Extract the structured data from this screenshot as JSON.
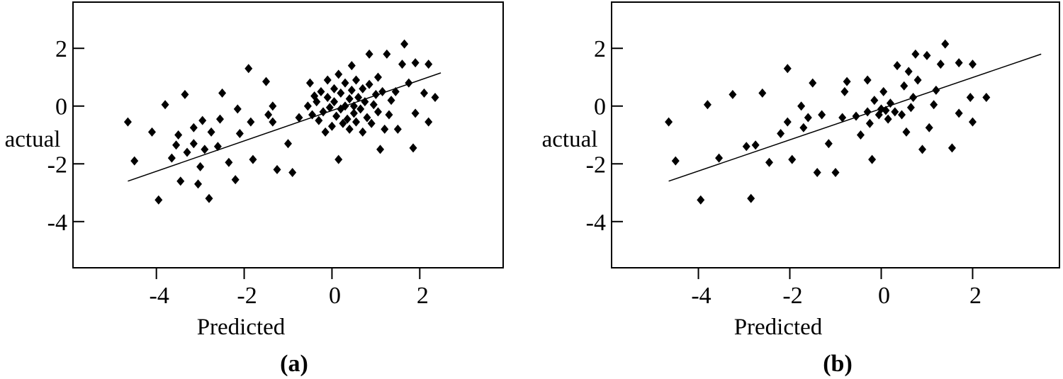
{
  "chart_data": [
    {
      "type": "scatter",
      "panel_label": "(a)",
      "title": "",
      "xlabel": "Predicted",
      "ylabel": "actual",
      "xlim": [
        -5.9,
        3.9
      ],
      "ylim": [
        -5.6,
        3.6
      ],
      "xticks": [
        -4,
        -2,
        0,
        2
      ],
      "yticks": [
        2,
        0,
        -2,
        -4
      ],
      "grid": false,
      "legend": "none",
      "fit_line": {
        "x": [
          -4.65,
          2.48
        ],
        "y": [
          -2.6,
          1.15
        ]
      },
      "points": [
        [
          -4.65,
          -0.55
        ],
        [
          -4.5,
          -1.9
        ],
        [
          -4.1,
          -0.9
        ],
        [
          -3.95,
          -3.25
        ],
        [
          -3.8,
          0.05
        ],
        [
          -3.65,
          -1.8
        ],
        [
          -3.55,
          -1.35
        ],
        [
          -3.5,
          -1.0
        ],
        [
          -3.45,
          -2.6
        ],
        [
          -3.35,
          0.4
        ],
        [
          -3.3,
          -1.6
        ],
        [
          -3.15,
          -1.3
        ],
        [
          -3.15,
          -0.75
        ],
        [
          -3.05,
          -2.7
        ],
        [
          -3.0,
          -2.1
        ],
        [
          -2.95,
          -0.5
        ],
        [
          -2.9,
          -1.5
        ],
        [
          -2.8,
          -3.2
        ],
        [
          -2.75,
          -0.9
        ],
        [
          -2.6,
          -1.4
        ],
        [
          -2.55,
          -0.45
        ],
        [
          -2.5,
          0.45
        ],
        [
          -2.35,
          -1.95
        ],
        [
          -2.2,
          -2.55
        ],
        [
          -2.15,
          -0.1
        ],
        [
          -2.1,
          -0.95
        ],
        [
          -1.9,
          1.3
        ],
        [
          -1.85,
          -0.55
        ],
        [
          -1.8,
          -1.85
        ],
        [
          -1.5,
          0.85
        ],
        [
          -1.45,
          -0.3
        ],
        [
          -1.35,
          -0.55
        ],
        [
          -1.35,
          0.0
        ],
        [
          -1.25,
          -2.2
        ],
        [
          -1.0,
          -1.3
        ],
        [
          -0.9,
          -2.3
        ],
        [
          -0.75,
          -0.4
        ],
        [
          -0.55,
          0.0
        ],
        [
          -0.5,
          0.8
        ],
        [
          -0.45,
          -0.3
        ],
        [
          -0.4,
          0.35
        ],
        [
          -0.35,
          0.15
        ],
        [
          -0.3,
          -0.5
        ],
        [
          -0.25,
          0.5
        ],
        [
          -0.2,
          -0.2
        ],
        [
          -0.15,
          -0.9
        ],
        [
          -0.1,
          0.3
        ],
        [
          -0.1,
          0.9
        ],
        [
          -0.05,
          -0.05
        ],
        [
          0.0,
          -0.7
        ],
        [
          0.05,
          0.6
        ],
        [
          0.05,
          0.15
        ],
        [
          0.1,
          -0.35
        ],
        [
          0.15,
          1.1
        ],
        [
          0.15,
          -1.85
        ],
        [
          0.2,
          0.45
        ],
        [
          0.2,
          -0.1
        ],
        [
          0.25,
          -0.6
        ],
        [
          0.3,
          0.0
        ],
        [
          0.3,
          0.8
        ],
        [
          0.35,
          -0.45
        ],
        [
          0.4,
          0.25
        ],
        [
          0.4,
          -0.8
        ],
        [
          0.45,
          1.4
        ],
        [
          0.45,
          0.55
        ],
        [
          0.5,
          -0.25
        ],
        [
          0.5,
          0.0
        ],
        [
          0.55,
          0.9
        ],
        [
          0.55,
          -0.55
        ],
        [
          0.6,
          0.3
        ],
        [
          0.65,
          -0.1
        ],
        [
          0.7,
          -0.9
        ],
        [
          0.7,
          0.6
        ],
        [
          0.75,
          0.15
        ],
        [
          0.8,
          -0.4
        ],
        [
          0.85,
          1.8
        ],
        [
          0.85,
          0.75
        ],
        [
          0.9,
          -0.6
        ],
        [
          0.95,
          0.05
        ],
        [
          1.0,
          0.4
        ],
        [
          1.05,
          -0.2
        ],
        [
          1.05,
          1.0
        ],
        [
          1.1,
          -1.5
        ],
        [
          1.15,
          0.5
        ],
        [
          1.2,
          -0.8
        ],
        [
          1.25,
          1.8
        ],
        [
          1.3,
          -0.3
        ],
        [
          1.35,
          0.2
        ],
        [
          1.45,
          0.5
        ],
        [
          1.5,
          -0.8
        ],
        [
          1.6,
          1.45
        ],
        [
          1.65,
          2.15
        ],
        [
          1.75,
          0.8
        ],
        [
          1.85,
          -1.45
        ],
        [
          1.9,
          -0.25
        ],
        [
          1.9,
          1.5
        ],
        [
          2.1,
          0.45
        ],
        [
          2.2,
          1.45
        ],
        [
          2.2,
          -0.55
        ],
        [
          2.35,
          0.3
        ]
      ]
    },
    {
      "type": "scatter",
      "panel_label": "(b)",
      "title": "",
      "xlabel": "Predicted",
      "ylabel": "actual",
      "xlim": [
        -5.9,
        3.9
      ],
      "ylim": [
        -5.6,
        3.6
      ],
      "xticks": [
        -4,
        -2,
        0,
        2
      ],
      "yticks": [
        2,
        0,
        -2,
        -4
      ],
      "grid": false,
      "legend": "none",
      "fit_line": {
        "x": [
          -4.65,
          3.5
        ],
        "y": [
          -2.6,
          1.8
        ]
      },
      "points": [
        [
          -4.65,
          -0.55
        ],
        [
          -4.5,
          -1.9
        ],
        [
          -3.95,
          -3.25
        ],
        [
          -3.8,
          0.05
        ],
        [
          -3.55,
          -1.8
        ],
        [
          -3.25,
          0.4
        ],
        [
          -2.95,
          -1.4
        ],
        [
          -2.85,
          -3.2
        ],
        [
          -2.75,
          -1.35
        ],
        [
          -2.6,
          0.45
        ],
        [
          -2.45,
          -1.95
        ],
        [
          -2.2,
          -0.95
        ],
        [
          -2.05,
          1.3
        ],
        [
          -2.05,
          -0.55
        ],
        [
          -1.95,
          -1.85
        ],
        [
          -1.75,
          0.0
        ],
        [
          -1.7,
          -0.75
        ],
        [
          -1.6,
          -0.4
        ],
        [
          -1.5,
          0.8
        ],
        [
          -1.4,
          -2.3
        ],
        [
          -1.3,
          -0.3
        ],
        [
          -1.15,
          -1.3
        ],
        [
          -1.0,
          -2.3
        ],
        [
          -0.85,
          -0.4
        ],
        [
          -0.8,
          0.5
        ],
        [
          -0.75,
          0.85
        ],
        [
          -0.55,
          -0.35
        ],
        [
          -0.45,
          -1.0
        ],
        [
          -0.3,
          -0.2
        ],
        [
          -0.3,
          0.9
        ],
        [
          -0.25,
          -0.6
        ],
        [
          -0.2,
          -1.85
        ],
        [
          -0.15,
          0.2
        ],
        [
          -0.05,
          -0.3
        ],
        [
          0.0,
          -0.1
        ],
        [
          0.05,
          0.5
        ],
        [
          0.1,
          -0.15
        ],
        [
          0.15,
          -0.45
        ],
        [
          0.2,
          0.1
        ],
        [
          0.3,
          -0.2
        ],
        [
          0.35,
          1.4
        ],
        [
          0.45,
          -0.3
        ],
        [
          0.5,
          0.7
        ],
        [
          0.55,
          -0.9
        ],
        [
          0.6,
          1.2
        ],
        [
          0.65,
          -0.05
        ],
        [
          0.7,
          0.3
        ],
        [
          0.75,
          1.8
        ],
        [
          0.8,
          0.9
        ],
        [
          0.9,
          -1.5
        ],
        [
          1.0,
          1.75
        ],
        [
          1.05,
          -0.75
        ],
        [
          1.15,
          0.05
        ],
        [
          1.2,
          0.55
        ],
        [
          1.3,
          1.45
        ],
        [
          1.4,
          2.15
        ],
        [
          1.55,
          -1.45
        ],
        [
          1.7,
          1.5
        ],
        [
          1.7,
          -0.25
        ],
        [
          1.95,
          0.3
        ],
        [
          2.0,
          1.45
        ],
        [
          2.0,
          -0.55
        ],
        [
          2.3,
          0.3
        ]
      ]
    }
  ]
}
